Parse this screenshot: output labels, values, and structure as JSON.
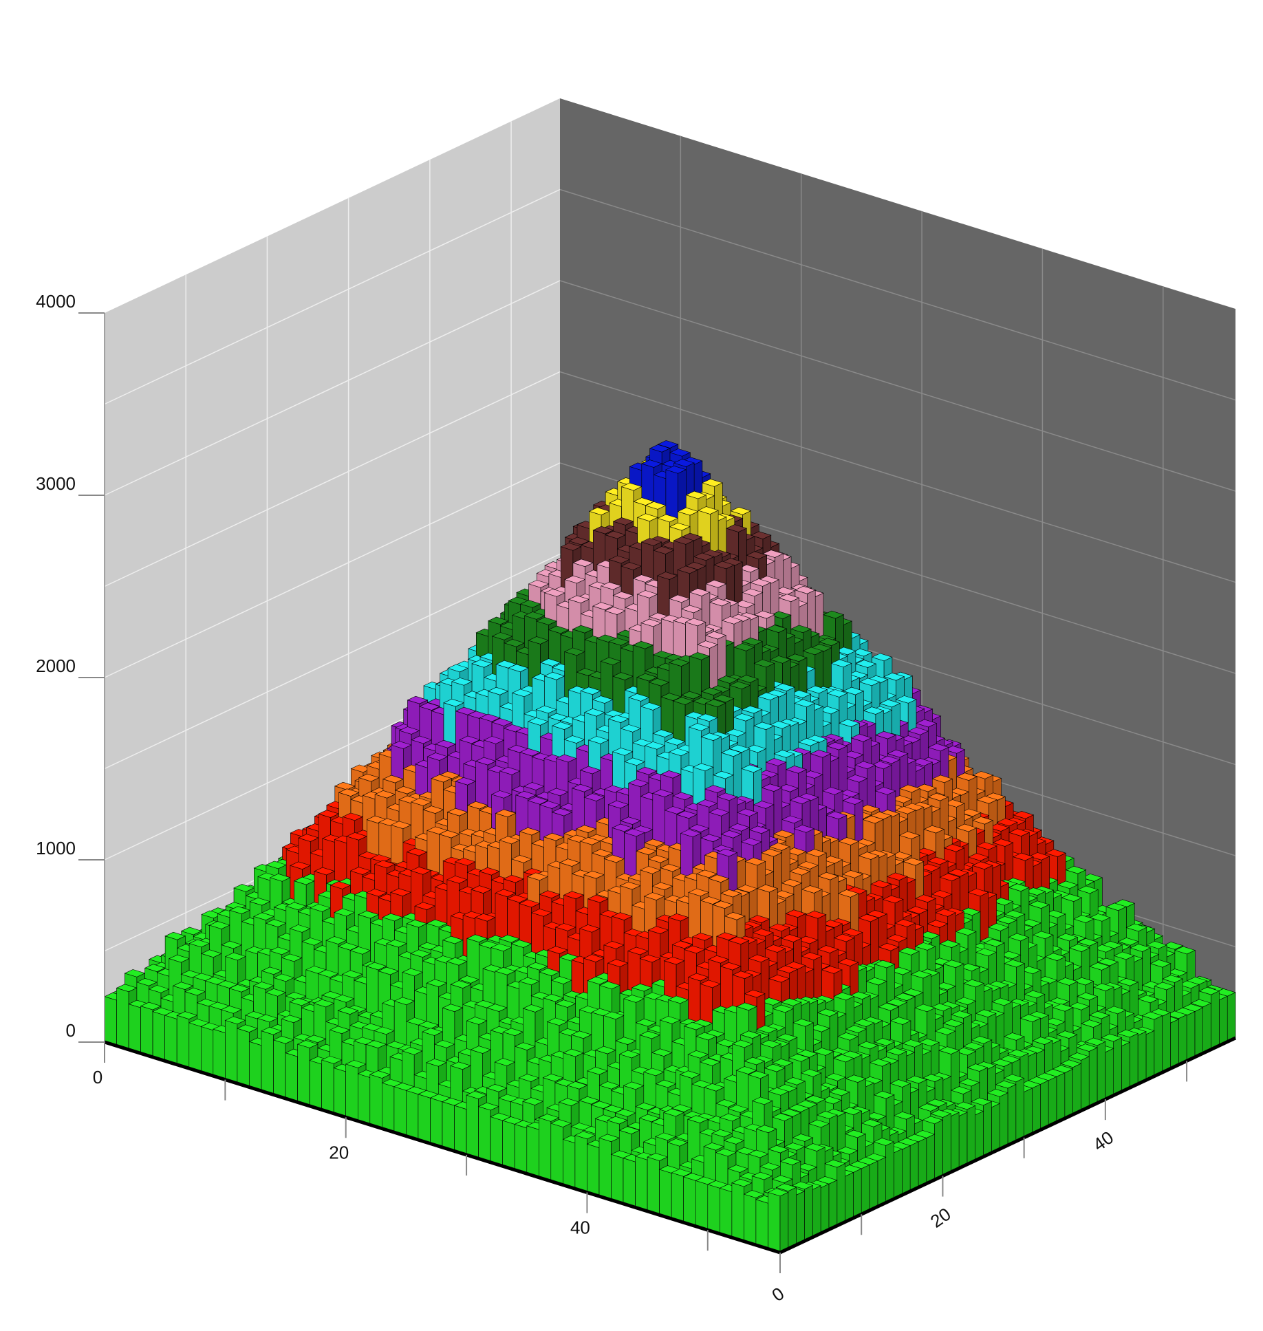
{
  "chart_data": {
    "type": "3d-bar",
    "z_axis": {
      "range": [
        0,
        4000
      ],
      "tick_labels": [
        "0",
        "1000",
        "2000",
        "3000",
        "4000"
      ]
    },
    "x_axis": {
      "range": [
        0,
        56
      ],
      "tick_labels": [
        "0",
        "20",
        "40"
      ]
    },
    "y_axis": {
      "range": [
        0,
        56
      ],
      "tick_labels": [
        "0",
        "20",
        "40"
      ]
    },
    "grid": true,
    "surface": {
      "shape": "stepped pyramid of bars on a 56 x 56 grid",
      "peak_height": 3300,
      "base_height": 250,
      "height_bands": [
        {
          "band": 1,
          "color": "#22ee22",
          "range": [
            0,
            1000
          ]
        },
        {
          "band": 2,
          "color": "#ff1a00",
          "range": [
            1000,
            1300
          ]
        },
        {
          "band": 3,
          "color": "#ff7a1a",
          "range": [
            1300,
            1600
          ]
        },
        {
          "band": 4,
          "color": "#a020d0",
          "range": [
            1600,
            1900
          ]
        },
        {
          "band": 5,
          "color": "#22eeee",
          "range": [
            1900,
            2200
          ]
        },
        {
          "band": 6,
          "color": "#1e8a1e",
          "range": [
            2200,
            2450
          ]
        },
        {
          "band": 7,
          "color": "#f0a0c0",
          "range": [
            2450,
            2700
          ]
        },
        {
          "band": 8,
          "color": "#6b3030",
          "range": [
            2700,
            2900
          ]
        },
        {
          "band": 9,
          "color": "#ffee22",
          "range": [
            2900,
            3100
          ]
        },
        {
          "band": 10,
          "color": "#0a1ae0",
          "range": [
            3100,
            4000
          ]
        }
      ]
    },
    "colors": {
      "left_wall": "#cccccc",
      "back_wall": "#666666",
      "grid_left": "#eeeeee",
      "grid_back": "#8a8a8a",
      "floor_edge": "#000000"
    }
  }
}
